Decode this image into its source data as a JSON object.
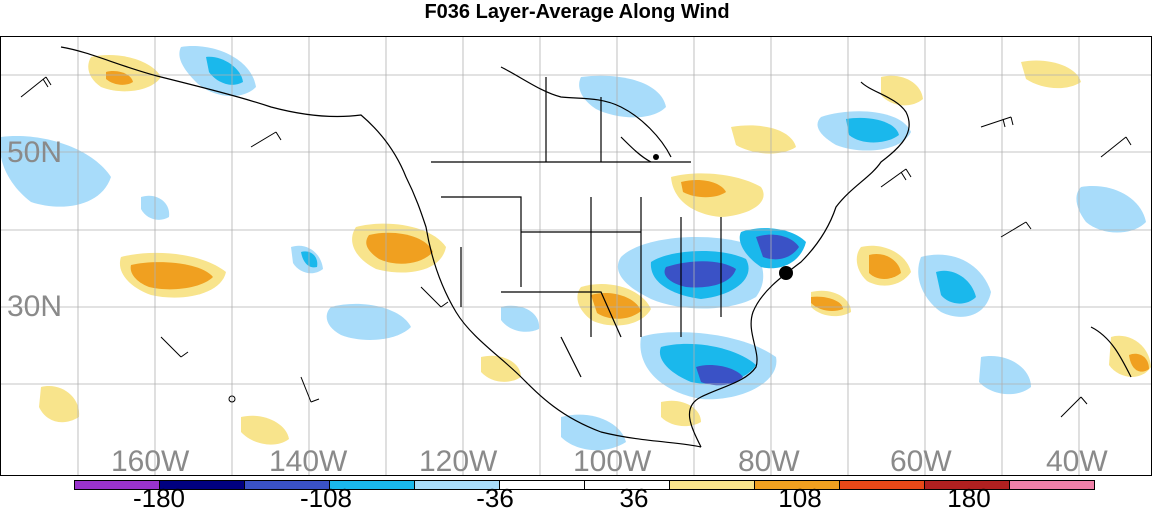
{
  "title": "F036 Layer-Average Along Wind",
  "lat_labels": [
    "50N",
    "30N"
  ],
  "lon_labels": [
    "160W",
    "140W",
    "120W",
    "100W",
    "80W",
    "60W",
    "40W"
  ],
  "colorbar": {
    "labels": [
      "-180",
      "-108",
      "-36",
      "36",
      "108",
      "180"
    ],
    "colors": [
      "#9933cc",
      "#000080",
      "#3a52c6",
      "#1ab8ec",
      "#a8dcfa",
      "#ffffff",
      "#ffffff",
      "#f8e48c",
      "#f0a020",
      "#e84818",
      "#b02020",
      "#f080a8"
    ]
  },
  "features": {
    "wind_barbs": "wind-barb",
    "cities": "city-marker"
  }
}
